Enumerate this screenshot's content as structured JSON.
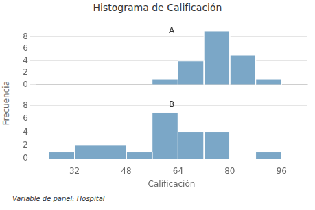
{
  "chart_data": [
    {
      "type": "histogram",
      "title": "Histograma de Calificación",
      "ylabel": "Frecuencia",
      "bins": [
        56,
        64,
        72,
        80,
        88,
        96
      ],
      "values": [
        1,
        4,
        9,
        5,
        1
      ],
      "color": "#7ba7c7",
      "xlim": [
        20,
        104
      ],
      "xticks": [
        32,
        48,
        64,
        80,
        96
      ],
      "ylim": [
        0,
        10
      ],
      "yticks": [
        0,
        2,
        4,
        6,
        8
      ],
      "grid": "y",
      "tick_labels": "y",
      "annotations": [
        "A"
      ]
    },
    {
      "type": "histogram",
      "xlabel": "Calificación",
      "bins": [
        24,
        32,
        48,
        56,
        64,
        72,
        80,
        88,
        96
      ],
      "values": [
        1,
        2,
        1,
        7,
        4,
        4,
        null,
        1
      ],
      "color": "#7ba7c7",
      "xlim": [
        20,
        104
      ],
      "xticks": [
        32,
        48,
        64,
        80,
        96
      ],
      "ylim": [
        0,
        9
      ],
      "yticks": [
        0,
        2,
        4,
        6,
        8
      ],
      "grid": "y",
      "annotations": [
        "B",
        "Variable de panel: Hospital"
      ]
    }
  ]
}
